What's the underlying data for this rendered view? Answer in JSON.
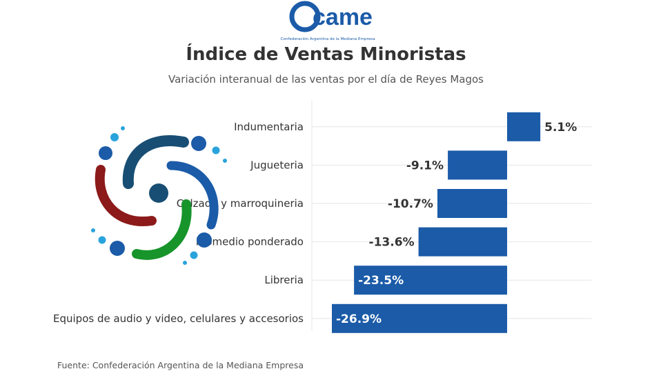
{
  "header": {
    "logo_text": "came",
    "logo_caption": "Confederación Argentina de la Mediana Empresa",
    "title": "Índice de Ventas Minoristas",
    "subtitle": "Variación interanual de las ventas por el día de Reyes Magos"
  },
  "footer": {
    "source": "Fuente: Confederación Argentina de la Mediana Empresa"
  },
  "colors": {
    "bar": "#1b5ba8",
    "grid": "#e6e6e6",
    "text": "#333333",
    "label_inside": "#ffffff",
    "label_outside": "#333333"
  },
  "chart_data": {
    "type": "bar",
    "orientation": "horizontal",
    "title": "Índice de Ventas Minoristas",
    "subtitle": "Variación interanual de las ventas por el día de Reyes Magos",
    "categories": [
      "Indumentaria",
      "Jugueteria",
      "Calzado y marroquineria",
      "Promedio ponderado",
      "Libreria",
      "Equipos de audio y video, celulares y accesorios"
    ],
    "values": [
      5.1,
      -9.1,
      -10.7,
      -13.6,
      -23.5,
      -26.9
    ],
    "data_labels": [
      "5.1%",
      "-9.1%",
      "-10.7%",
      "-13.6%",
      "-23.5%",
      "-26.9%"
    ],
    "xlim": [
      -28,
      13
    ],
    "xlabel": "",
    "ylabel": "",
    "grid": true,
    "legend": false
  }
}
